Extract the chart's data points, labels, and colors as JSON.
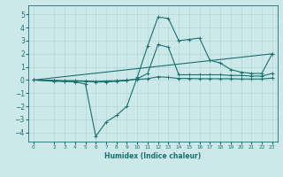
{
  "xlabel": "Humidex (Indice chaleur)",
  "background_color": "#cce8e8",
  "line_color": "#1a7070",
  "grid_color": "#aad4d4",
  "xlim": [
    -0.5,
    23.5
  ],
  "ylim": [
    -4.7,
    5.7
  ],
  "yticks": [
    -4,
    -3,
    -2,
    -1,
    0,
    1,
    2,
    3,
    4,
    5
  ],
  "xticks": [
    0,
    2,
    3,
    4,
    5,
    6,
    7,
    8,
    9,
    10,
    11,
    12,
    13,
    14,
    15,
    16,
    17,
    18,
    19,
    20,
    21,
    22,
    23
  ],
  "lines": [
    {
      "x": [
        0,
        2,
        3,
        4,
        5,
        6,
        7,
        8,
        9,
        10,
        11,
        12,
        13,
        14,
        15,
        16,
        17,
        18,
        19,
        20,
        21,
        22,
        23
      ],
      "y": [
        0.0,
        -0.1,
        -0.1,
        -0.15,
        -0.3,
        -4.3,
        -3.2,
        -2.7,
        -2.0,
        0.2,
        2.6,
        4.8,
        4.7,
        3.0,
        3.1,
        3.2,
        1.5,
        1.3,
        0.8,
        0.6,
        0.5,
        0.5,
        2.0
      ]
    },
    {
      "x": [
        0,
        2,
        3,
        4,
        5,
        6,
        7,
        8,
        9,
        10,
        11,
        12,
        13,
        14,
        15,
        16,
        17,
        18,
        19,
        20,
        21,
        22,
        23
      ],
      "y": [
        0.0,
        -0.05,
        -0.1,
        -0.1,
        -0.1,
        -0.15,
        -0.15,
        -0.1,
        -0.05,
        0.1,
        0.5,
        2.7,
        2.5,
        0.4,
        0.4,
        0.4,
        0.4,
        0.4,
        0.35,
        0.35,
        0.3,
        0.3,
        0.5
      ]
    },
    {
      "x": [
        0,
        2,
        3,
        4,
        5,
        6,
        7,
        8,
        9,
        10,
        11,
        12,
        13,
        14,
        15,
        16,
        17,
        18,
        19,
        20,
        21,
        22,
        23
      ],
      "y": [
        0.0,
        -0.02,
        -0.05,
        -0.05,
        -0.08,
        -0.1,
        -0.08,
        -0.05,
        0.0,
        0.05,
        0.1,
        0.25,
        0.2,
        0.12,
        0.12,
        0.1,
        0.1,
        0.1,
        0.1,
        0.08,
        0.08,
        0.08,
        0.15
      ]
    },
    {
      "x": [
        0,
        23
      ],
      "y": [
        0.0,
        2.0
      ]
    }
  ]
}
